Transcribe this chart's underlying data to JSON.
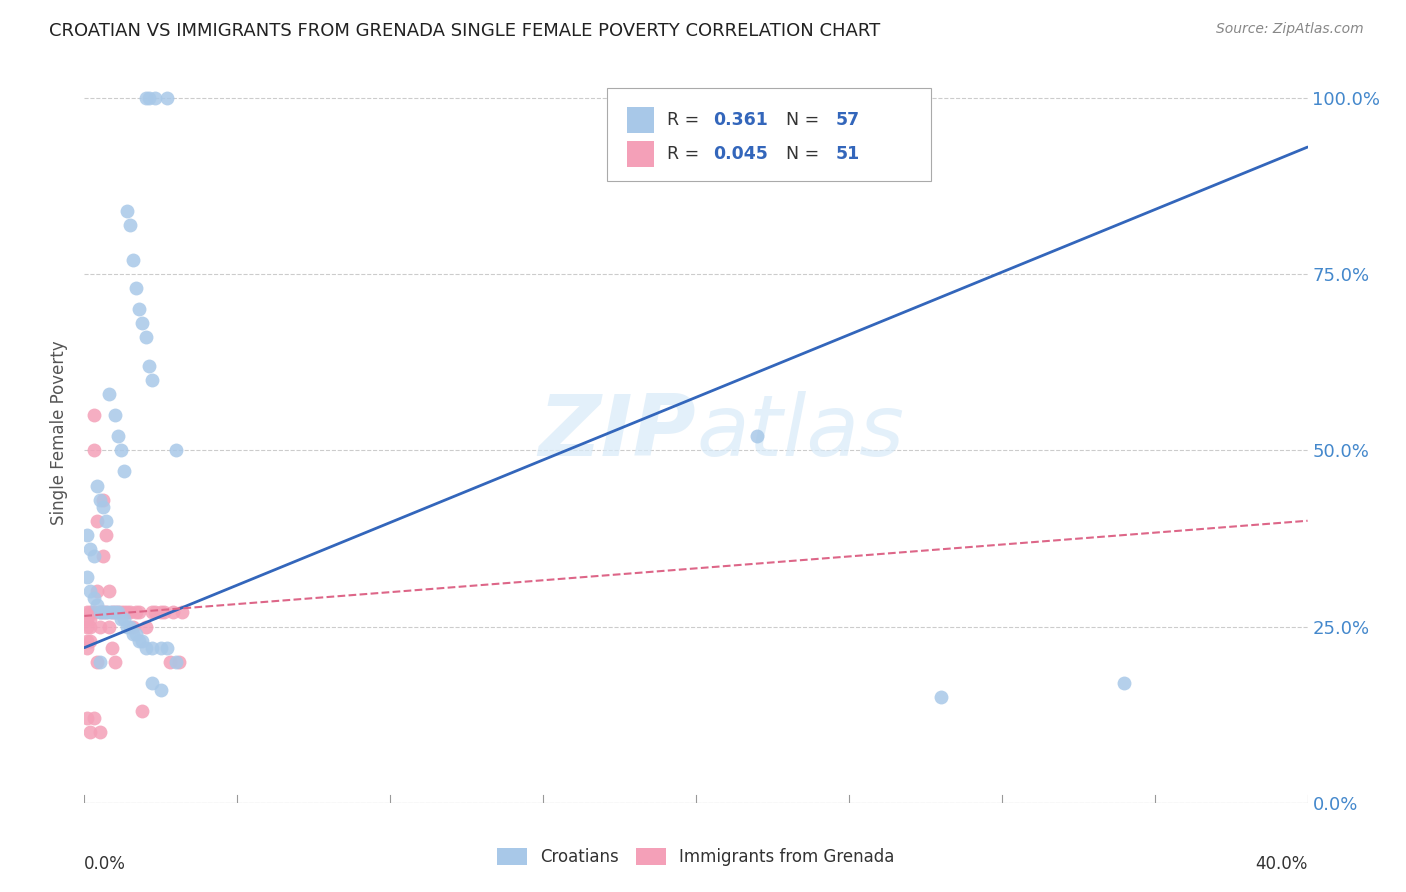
{
  "title": "CROATIAN VS IMMIGRANTS FROM GRENADA SINGLE FEMALE POVERTY CORRELATION CHART",
  "source": "Source: ZipAtlas.com",
  "ylabel": "Single Female Poverty",
  "yticks": [
    "0.0%",
    "25.0%",
    "50.0%",
    "75.0%",
    "100.0%"
  ],
  "ytick_vals": [
    0.0,
    0.25,
    0.5,
    0.75,
    1.0
  ],
  "xlim": [
    0.0,
    0.4
  ],
  "ylim": [
    0.0,
    1.05
  ],
  "legend_val1": "0.361",
  "legend_n1": "57",
  "legend_val2": "0.045",
  "legend_n2": "51",
  "color_croatian": "#a8c8e8",
  "color_grenada": "#f4a0b8",
  "trendline_croatian": "#3366bb",
  "trendline_grenada": "#dd6688",
  "watermark": "ZIPatlas",
  "croatian_trendline_x0": 0.0,
  "croatian_trendline_y0": 0.22,
  "croatian_trendline_x1": 0.4,
  "croatian_trendline_y1": 0.93,
  "grenada_trendline_x0": 0.0,
  "grenada_trendline_y0": 0.265,
  "grenada_trendline_x1": 0.4,
  "grenada_trendline_y1": 0.4,
  "croatian_x": [
    0.02,
    0.021,
    0.023,
    0.027,
    0.014,
    0.015,
    0.016,
    0.017,
    0.018,
    0.019,
    0.02,
    0.021,
    0.022,
    0.008,
    0.01,
    0.011,
    0.012,
    0.013,
    0.004,
    0.005,
    0.006,
    0.007,
    0.001,
    0.002,
    0.003,
    0.001,
    0.002,
    0.003,
    0.004,
    0.005,
    0.006,
    0.007,
    0.008,
    0.009,
    0.01,
    0.011,
    0.012,
    0.013,
    0.014,
    0.015,
    0.016,
    0.017,
    0.018,
    0.019,
    0.02,
    0.022,
    0.025,
    0.027,
    0.03,
    0.022,
    0.025,
    0.22,
    0.34,
    0.28,
    0.005,
    0.03
  ],
  "croatian_y": [
    1.0,
    1.0,
    1.0,
    1.0,
    0.84,
    0.82,
    0.77,
    0.73,
    0.7,
    0.68,
    0.66,
    0.62,
    0.6,
    0.58,
    0.55,
    0.52,
    0.5,
    0.47,
    0.45,
    0.43,
    0.42,
    0.4,
    0.38,
    0.36,
    0.35,
    0.32,
    0.3,
    0.29,
    0.28,
    0.27,
    0.27,
    0.27,
    0.27,
    0.27,
    0.27,
    0.27,
    0.26,
    0.26,
    0.25,
    0.25,
    0.24,
    0.24,
    0.23,
    0.23,
    0.22,
    0.22,
    0.22,
    0.22,
    0.2,
    0.17,
    0.16,
    0.52,
    0.17,
    0.15,
    0.2,
    0.5
  ],
  "grenada_x": [
    0.001,
    0.001,
    0.001,
    0.001,
    0.001,
    0.001,
    0.002,
    0.002,
    0.002,
    0.002,
    0.002,
    0.003,
    0.003,
    0.003,
    0.003,
    0.004,
    0.004,
    0.004,
    0.005,
    0.005,
    0.005,
    0.006,
    0.006,
    0.006,
    0.007,
    0.007,
    0.008,
    0.008,
    0.009,
    0.009,
    0.01,
    0.01,
    0.011,
    0.012,
    0.013,
    0.014,
    0.015,
    0.016,
    0.017,
    0.018,
    0.019,
    0.02,
    0.022,
    0.023,
    0.025,
    0.026,
    0.028,
    0.029,
    0.031,
    0.032
  ],
  "grenada_y": [
    0.27,
    0.26,
    0.25,
    0.23,
    0.22,
    0.12,
    0.27,
    0.26,
    0.25,
    0.23,
    0.1,
    0.55,
    0.5,
    0.27,
    0.12,
    0.4,
    0.3,
    0.2,
    0.27,
    0.25,
    0.1,
    0.43,
    0.35,
    0.27,
    0.38,
    0.27,
    0.3,
    0.25,
    0.27,
    0.22,
    0.27,
    0.2,
    0.27,
    0.27,
    0.27,
    0.27,
    0.27,
    0.25,
    0.27,
    0.27,
    0.13,
    0.25,
    0.27,
    0.27,
    0.27,
    0.27,
    0.2,
    0.27,
    0.2,
    0.27
  ]
}
